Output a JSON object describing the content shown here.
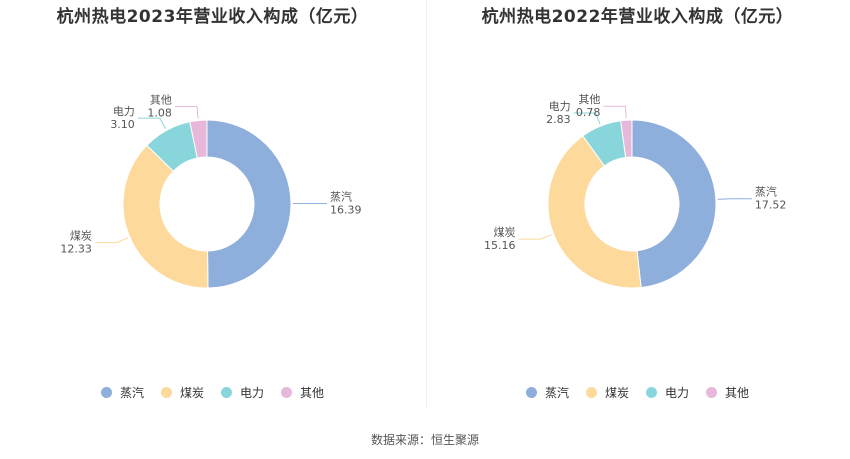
{
  "source": "数据来源：恒生聚源",
  "chart_data": [
    {
      "type": "pie",
      "variant": "donut",
      "title": "杭州热电2023年营业收入构成（亿元）",
      "categories": [
        "蒸汽",
        "煤炭",
        "电力",
        "其他"
      ],
      "values": [
        16.39,
        12.33,
        3.1,
        1.08
      ],
      "value_labels": [
        "16.39",
        "12.33",
        "3.10",
        "1.08"
      ],
      "colors": [
        "#8eaedc",
        "#fdd99b",
        "#88d6dc",
        "#e7b8da"
      ],
      "legend_position": "bottom"
    },
    {
      "type": "pie",
      "variant": "donut",
      "title": "杭州热电2022年营业收入构成（亿元）",
      "categories": [
        "蒸汽",
        "煤炭",
        "电力",
        "其他"
      ],
      "values": [
        17.52,
        15.16,
        2.83,
        0.78
      ],
      "value_labels": [
        "17.52",
        "15.16",
        "2.83",
        "0.78"
      ],
      "colors": [
        "#8eaedc",
        "#fdd99b",
        "#88d6dc",
        "#e7b8da"
      ],
      "legend_position": "bottom"
    }
  ]
}
